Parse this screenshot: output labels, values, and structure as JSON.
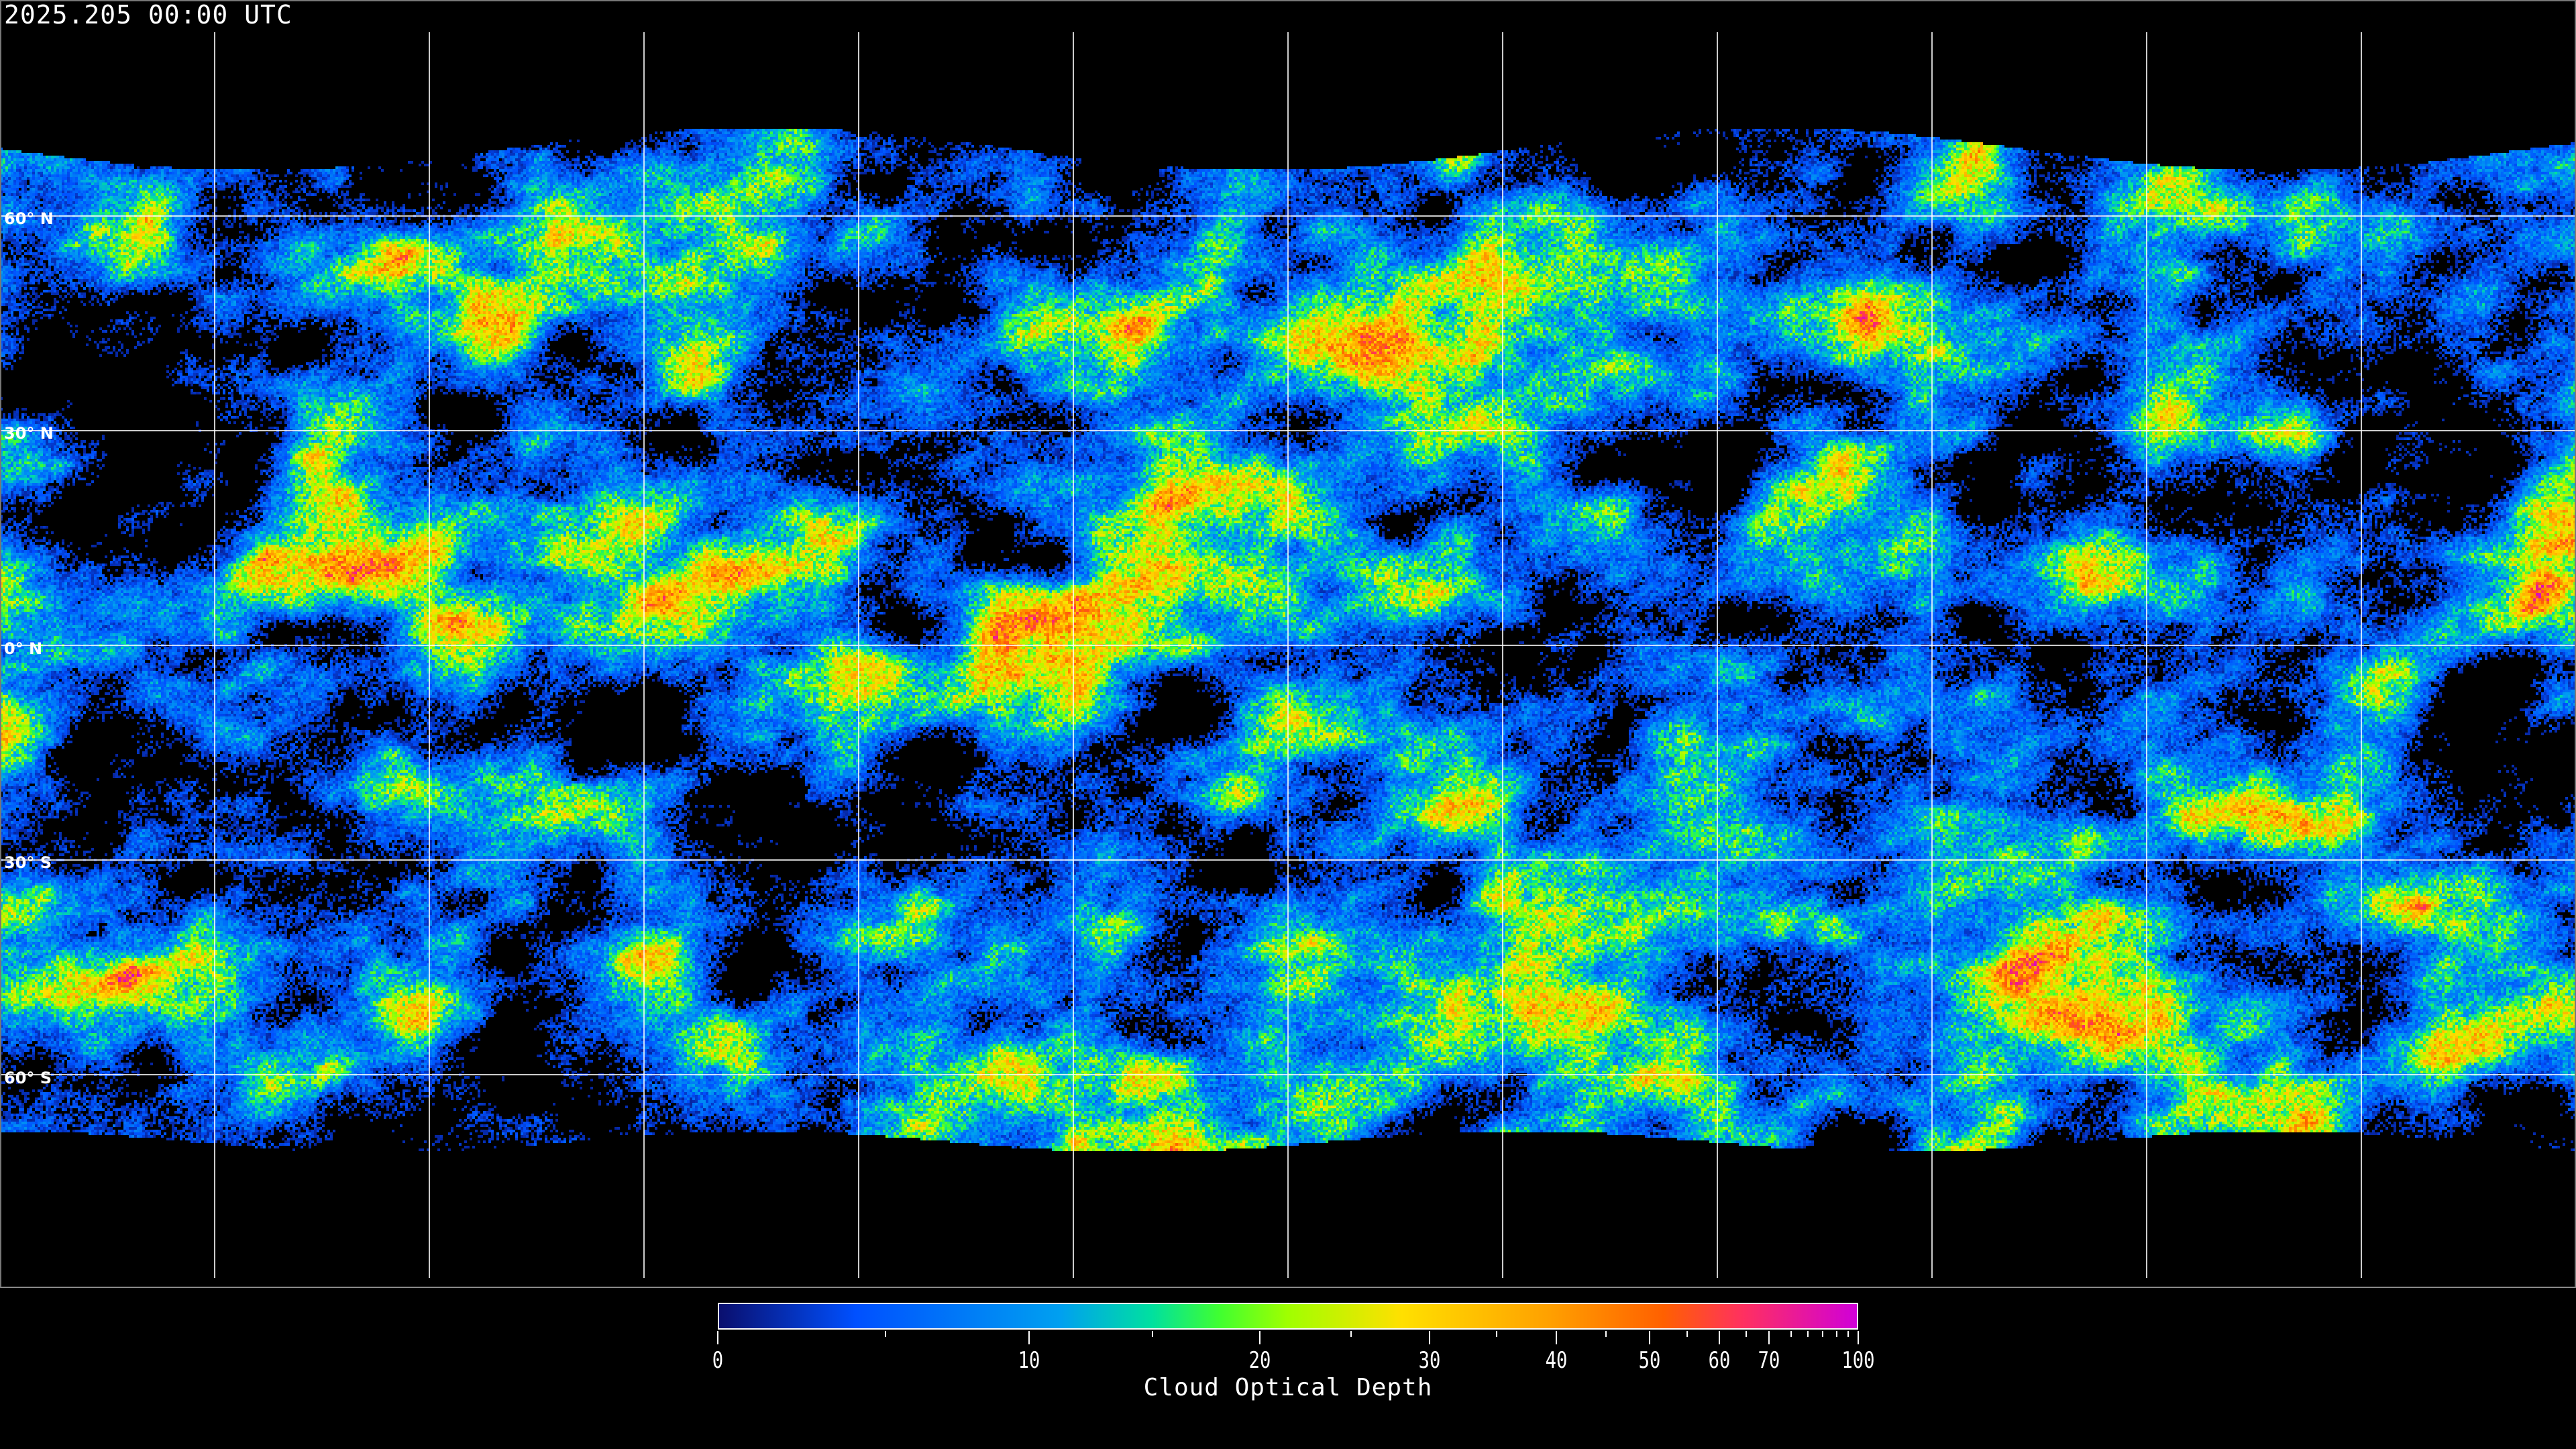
{
  "header": {
    "timestamp": "2025.205 00:00 UTC"
  },
  "map": {
    "projection": "equirectangular",
    "gridlines": true,
    "lat_labels": [
      "60° N",
      "30° N",
      "0° N",
      "30° S",
      "60° S"
    ],
    "lat_values": [
      60,
      30,
      0,
      -30,
      -60
    ],
    "lon_gridline_spacing_deg": 30,
    "no_data_color": "#000000",
    "gridline_color": "#ffffff"
  },
  "colorbar": {
    "label": "Cloud Optical Depth",
    "range": [
      0,
      100
    ],
    "major_ticks": [
      "0",
      "10",
      "20",
      "30",
      "40",
      "50",
      "60",
      "70",
      "100"
    ],
    "minor_ticks": [
      5,
      15,
      25,
      35,
      45,
      55,
      65,
      75,
      80,
      85,
      90,
      95
    ],
    "colors": [
      "#0a0f6e",
      "#0050ff",
      "#00a0f0",
      "#00e0a0",
      "#40ff30",
      "#a0ff00",
      "#ffe000",
      "#ffa000",
      "#ff6000",
      "#ff3060",
      "#d000d8"
    ]
  }
}
